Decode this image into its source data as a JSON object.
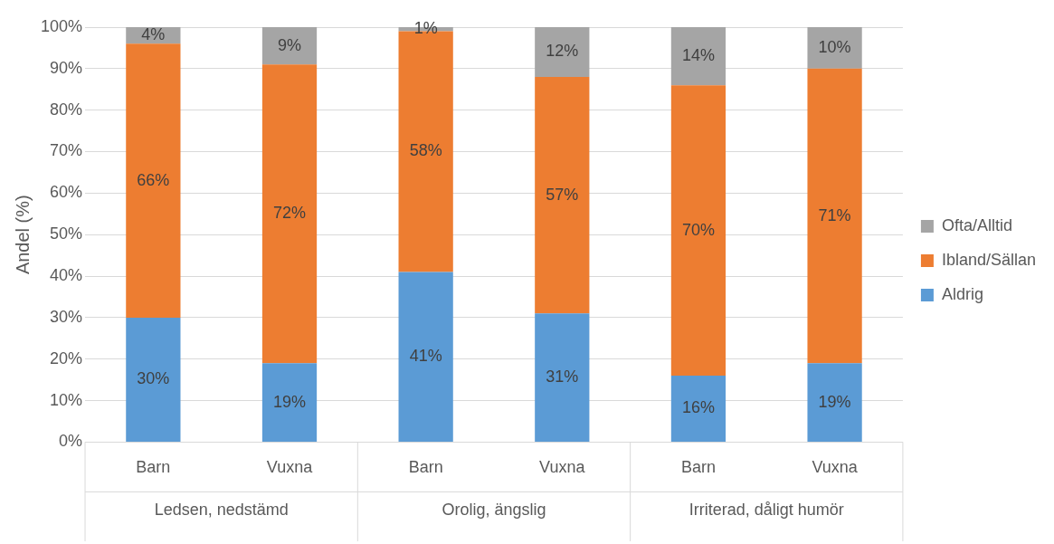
{
  "chart_data": {
    "type": "bar",
    "stacked": true,
    "ylabel": "Andel (%)",
    "categories": [
      "Barn",
      "Vuxna",
      "Barn",
      "Vuxna",
      "Barn",
      "Vuxna"
    ],
    "annotations": [
      "Ledsen, nedstämd",
      "Orolig, ängslig",
      "Irriterad, dåligt humör"
    ],
    "series": [
      {
        "name": "Aldrig",
        "color": "#5b9bd5",
        "values": [
          30,
          19,
          41,
          31,
          16,
          19
        ],
        "value_labels": [
          "30%",
          "19%",
          "41%",
          "31%",
          "16%",
          "19%"
        ]
      },
      {
        "name": "Ibland/Sällan",
        "color": "#ed7d31",
        "values": [
          66,
          72,
          58,
          57,
          70,
          71
        ],
        "value_labels": [
          "66%",
          "72%",
          "58%",
          "57%",
          "70%",
          "71%"
        ]
      },
      {
        "name": "Ofta/Alltid",
        "color": "#a5a5a5",
        "values": [
          4,
          9,
          1,
          12,
          14,
          10
        ],
        "value_labels": [
          "4%",
          "9%",
          "1%",
          "12%",
          "14%",
          "10%"
        ]
      }
    ],
    "ylim": [
      0,
      100
    ],
    "yticks": [
      {
        "value": 0,
        "label": "0%"
      },
      {
        "value": 10,
        "label": "10%"
      },
      {
        "value": 20,
        "label": "20%"
      },
      {
        "value": 30,
        "label": "30%"
      },
      {
        "value": 40,
        "label": "40%"
      },
      {
        "value": 50,
        "label": "50%"
      },
      {
        "value": 60,
        "label": "60%"
      },
      {
        "value": 70,
        "label": "70%"
      },
      {
        "value": 80,
        "label": "80%"
      },
      {
        "value": 90,
        "label": "90%"
      },
      {
        "value": 100,
        "label": "100%"
      }
    ],
    "grid": "y",
    "legend": "right"
  }
}
